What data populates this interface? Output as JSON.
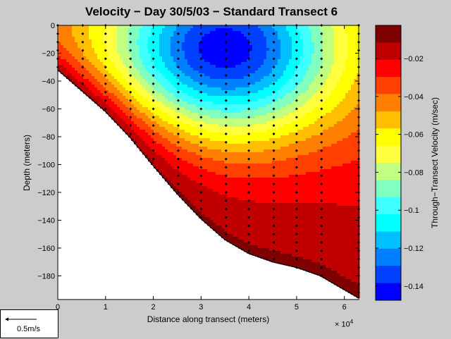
{
  "chart_data": {
    "type": "contour",
    "title": "Velocity − Day 30/5/03 − Standard Transect 6",
    "xlabel": "Distance along transect (meters)",
    "ylabel": "Depth (meters)",
    "x_exponent_label": "× 10",
    "x_exponent_power": "4",
    "xlim": [
      0,
      63000
    ],
    "ylim": [
      -197,
      0
    ],
    "xticks": [
      0,
      1,
      2,
      3,
      4,
      5,
      6
    ],
    "yticks": [
      0,
      -20,
      -40,
      -60,
      -80,
      -100,
      -120,
      -140,
      -160,
      -180
    ],
    "colorbar": {
      "label": "Through−Transect Velocity (m/sec)",
      "range": [
        -0.1475,
        -0.0025
      ],
      "ticks": [
        -0.02,
        -0.04,
        -0.06,
        -0.08,
        -0.1,
        -0.12,
        -0.14
      ],
      "tick_labels": [
        "−0.02",
        "−0.04",
        "−0.06",
        "−0.08",
        "−0.1",
        "−0.12",
        "−0.14"
      ],
      "levels": 16
    },
    "bottom_profile": [
      {
        "x": 0,
        "depth": -32
      },
      {
        "x": 5000,
        "depth": -47
      },
      {
        "x": 10000,
        "depth": -62
      },
      {
        "x": 15000,
        "depth": -80
      },
      {
        "x": 20000,
        "depth": -101
      },
      {
        "x": 25000,
        "depth": -121
      },
      {
        "x": 30000,
        "depth": -139
      },
      {
        "x": 35000,
        "depth": -154
      },
      {
        "x": 40000,
        "depth": -164
      },
      {
        "x": 45000,
        "depth": -170
      },
      {
        "x": 50000,
        "depth": -174
      },
      {
        "x": 55000,
        "depth": -180
      },
      {
        "x": 58000,
        "depth": -186
      },
      {
        "x": 63000,
        "depth": -196
      }
    ],
    "core": {
      "x": 35000,
      "depth": -18,
      "velocity": -0.145
    },
    "surface_min": -0.03,
    "deep_max": -0.01,
    "station_x": [
      0,
      5000,
      10000,
      15000,
      20000,
      25000,
      30000,
      35000,
      40000,
      45000,
      50000,
      55000,
      63000
    ],
    "sample_spacing": 6,
    "scale_arrow_label": "0.5m/s",
    "colors": [
      "#7f0000",
      "#c00000",
      "#ff0000",
      "#ff4000",
      "#ff8000",
      "#ffbf00",
      "#ffff00",
      "#ffff40",
      "#c0ff80",
      "#80ffc0",
      "#40ffff",
      "#00ffff",
      "#00bfff",
      "#0080ff",
      "#0040ff",
      "#0000ff",
      "#0000bf",
      "#00008f"
    ]
  }
}
